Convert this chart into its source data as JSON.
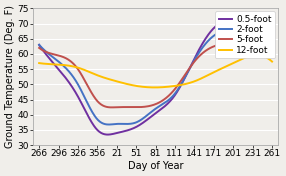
{
  "title": "",
  "xlabel": "Day of Year",
  "ylabel": "Ground Temperature (Deg. F)",
  "ylim": [
    30,
    75
  ],
  "yticks": [
    30,
    35,
    40,
    45,
    50,
    55,
    60,
    65,
    70,
    75
  ],
  "xtick_labels": [
    "266",
    "296",
    "326",
    "356",
    "21",
    "51",
    "81",
    "111",
    "141",
    "171",
    "201",
    "231",
    "261"
  ],
  "series": [
    {
      "label": "0.5-foot",
      "color": "#7030A0",
      "linewidth": 1.4,
      "y": [
        63.0,
        55.0,
        46.0,
        35.0,
        34.0,
        36.0,
        40.5,
        46.5,
        58.5,
        68.5,
        71.5,
        71.0,
        63.0
      ]
    },
    {
      "label": "2-foot",
      "color": "#4472C4",
      "linewidth": 1.4,
      "y": [
        63.0,
        57.5,
        50.0,
        38.5,
        37.0,
        37.5,
        42.0,
        47.0,
        58.0,
        66.0,
        68.5,
        69.0,
        64.0
      ]
    },
    {
      "label": "5-foot",
      "color": "#C0504D",
      "linewidth": 1.4,
      "y": [
        62.0,
        59.5,
        55.0,
        44.5,
        42.5,
        42.5,
        43.5,
        48.5,
        57.5,
        62.5,
        63.5,
        63.5,
        63.0
      ]
    },
    {
      "label": "12-foot",
      "color": "#FFC000",
      "linewidth": 1.4,
      "y": [
        57.0,
        56.5,
        55.5,
        53.0,
        51.0,
        49.5,
        49.0,
        49.5,
        51.0,
        54.0,
        57.0,
        59.5,
        57.5
      ]
    }
  ],
  "legend_fontsize": 6.5,
  "axis_label_fontsize": 7,
  "tick_fontsize": 6.5,
  "bg_color": "#f0eeea",
  "grid_color": "#ffffff",
  "spine_color": "#aaaaaa"
}
